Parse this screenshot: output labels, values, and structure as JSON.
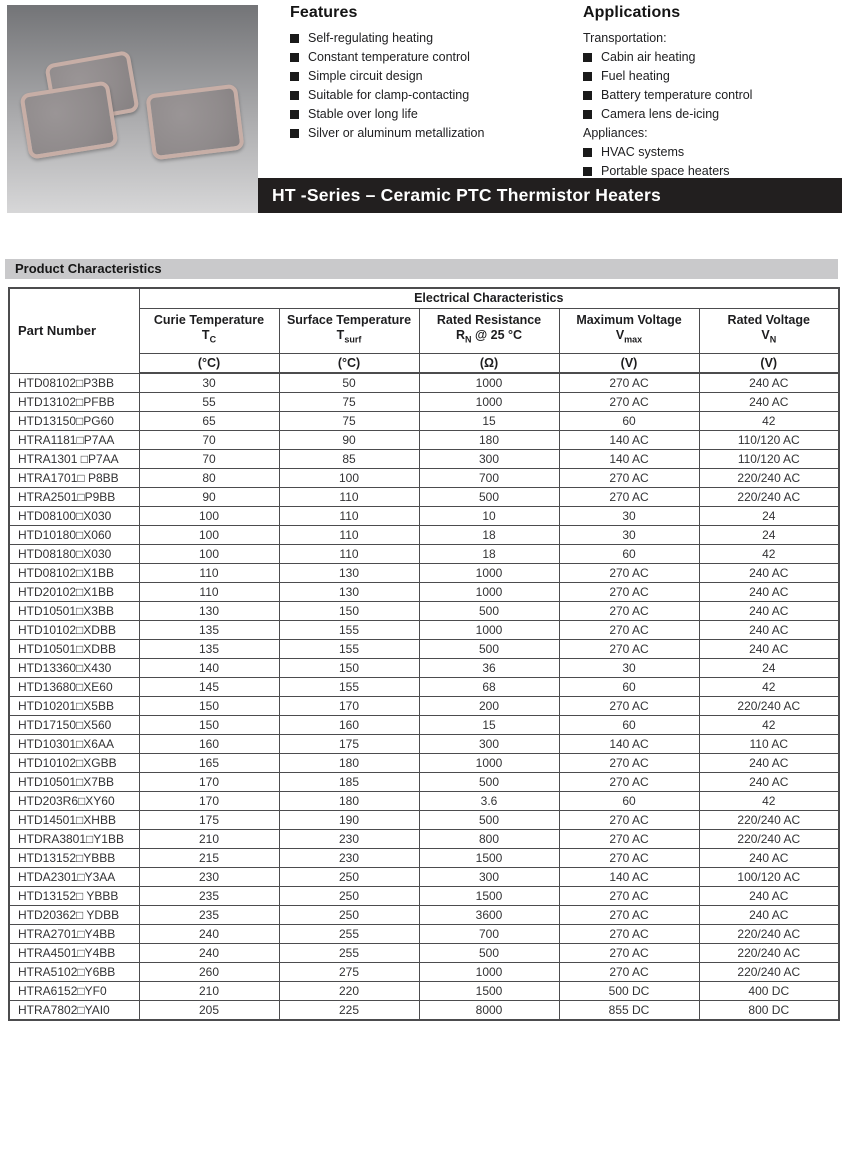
{
  "colors": {
    "banner_bg": "#221f1f",
    "banner_text": "#ffffff",
    "section_bar_bg": "#c9c9cb",
    "table_border": "#4c4c4e",
    "text_primary": "#2f2f31",
    "bullet": "#1a1a1a",
    "chip_border": "#c7aea6",
    "chip_face": "#908b8c",
    "photo_grad_top": "#737477",
    "photo_grad_bottom": "#d7d7d8"
  },
  "photo": {
    "description": "Three rounded rectangular ceramic PTC thermistor heater elements on gray gradient background"
  },
  "features": {
    "title": "Features",
    "items": [
      "Self-regulating heating",
      "Constant temperature control",
      "Simple circuit design",
      "Suitable for clamp-contacting",
      "Stable over long life",
      "Silver or aluminum metallization"
    ]
  },
  "applications": {
    "title": "Applications",
    "groups": [
      {
        "label": "Transportation:",
        "items": [
          "Cabin air heating",
          "Fuel heating",
          "Battery temperature control",
          "Camera lens de-icing"
        ]
      },
      {
        "label": "Appliances:",
        "items": [
          "HVAC systems",
          "Portable space heaters"
        ]
      }
    ]
  },
  "banner": {
    "title": "HT -Series – Ceramic PTC Thermistor Heaters"
  },
  "section": {
    "title": "Product Characteristics"
  },
  "table": {
    "part_number_header": "Part Number",
    "group_header": "Electrical Characteristics",
    "columns": [
      {
        "title": "Curie Temperature",
        "symbol": {
          "base": "T",
          "sub": "C",
          "suffix": ""
        },
        "unit": "(°C)"
      },
      {
        "title": "Surface Temperature",
        "symbol": {
          "base": "T",
          "sub": "surf",
          "suffix": ""
        },
        "unit": "(°C)"
      },
      {
        "title": "Rated Resistance",
        "symbol": {
          "base": "R",
          "sub": "N",
          "suffix": " @ 25 °C"
        },
        "unit": "(Ω)"
      },
      {
        "title": "Maximum Voltage",
        "symbol": {
          "base": "V",
          "sub": "max",
          "suffix": ""
        },
        "unit": "(V)"
      },
      {
        "title": "Rated Voltage",
        "symbol": {
          "base": "V",
          "sub": "N",
          "suffix": ""
        },
        "unit": "(V)"
      }
    ],
    "rows": [
      [
        "HTD08102□P3BB",
        "30",
        "50",
        "1000",
        "270 AC",
        "240 AC"
      ],
      [
        "HTD13102□PFBB",
        "55",
        "75",
        "1000",
        "270 AC",
        "240 AC"
      ],
      [
        "HTD13150□PG60",
        "65",
        "75",
        "15",
        "60",
        "42"
      ],
      [
        "HTRA1181□P7AA",
        "70",
        "90",
        "180",
        "140 AC",
        "110/120 AC"
      ],
      [
        "HTRA1301 □P7AA",
        "70",
        "85",
        "300",
        "140 AC",
        "110/120 AC"
      ],
      [
        "HTRA1701□ P8BB",
        "80",
        "100",
        "700",
        "270 AC",
        "220/240 AC"
      ],
      [
        "HTRA2501□P9BB",
        "90",
        "110",
        "500",
        "270 AC",
        "220/240 AC"
      ],
      [
        "HTD08100□X030",
        "100",
        "110",
        "10",
        "30",
        "24"
      ],
      [
        "HTD10180□X060",
        "100",
        "110",
        "18",
        "30",
        "24"
      ],
      [
        "HTD08180□X030",
        "100",
        "110",
        "18",
        "60",
        "42"
      ],
      [
        "HTD08102□X1BB",
        "110",
        "130",
        "1000",
        "270 AC",
        "240 AC"
      ],
      [
        "HTD20102□X1BB",
        "110",
        "130",
        "1000",
        "270 AC",
        "240 AC"
      ],
      [
        "HTD10501□X3BB",
        "130",
        "150",
        "500",
        "270 AC",
        "240 AC"
      ],
      [
        "HTD10102□XDBB",
        "135",
        "155",
        "1000",
        "270 AC",
        "240 AC"
      ],
      [
        "HTD10501□XDBB",
        "135",
        "155",
        "500",
        "270 AC",
        "240 AC"
      ],
      [
        "HTD13360□X430",
        "140",
        "150",
        "36",
        "30",
        "24"
      ],
      [
        "HTD13680□XE60",
        "145",
        "155",
        "68",
        "60",
        "42"
      ],
      [
        "HTD10201□X5BB",
        "150",
        "170",
        "200",
        "270 AC",
        "220/240 AC"
      ],
      [
        "HTD17150□X560",
        "150",
        "160",
        "15",
        "60",
        "42"
      ],
      [
        "HTD10301□X6AA",
        "160",
        "175",
        "300",
        "140 AC",
        "110 AC"
      ],
      [
        "HTD10102□XGBB",
        "165",
        "180",
        "1000",
        "270 AC",
        "240 AC"
      ],
      [
        "HTD10501□X7BB",
        "170",
        "185",
        "500",
        "270 AC",
        "240 AC"
      ],
      [
        "HTD203R6□XY60",
        "170",
        "180",
        "3.6",
        "60",
        "42"
      ],
      [
        "HTD14501□XHBB",
        "175",
        "190",
        "500",
        "270 AC",
        "220/240 AC"
      ],
      [
        "HTDRA3801□Y1BB",
        "210",
        "230",
        "800",
        "270 AC",
        "220/240 AC"
      ],
      [
        "HTD13152□YBBB",
        "215",
        "230",
        "1500",
        "270 AC",
        "240 AC"
      ],
      [
        "HTDA2301□Y3AA",
        "230",
        "250",
        "300",
        "140 AC",
        "100/120 AC"
      ],
      [
        "HTD13152□ YBBB",
        "235",
        "250",
        "1500",
        "270 AC",
        "240 AC"
      ],
      [
        "HTD20362□ YDBB",
        "235",
        "250",
        "3600",
        "270 AC",
        "240 AC"
      ],
      [
        "HTRA2701□Y4BB",
        "240",
        "255",
        "700",
        "270 AC",
        "220/240 AC"
      ],
      [
        "HTRA4501□Y4BB",
        "240",
        "255",
        "500",
        "270 AC",
        "220/240 AC"
      ],
      [
        "HTRA5102□Y6BB",
        "260",
        "275",
        "1000",
        "270 AC",
        "220/240 AC"
      ],
      [
        "HTRA6152□YF0",
        "210",
        "220",
        "1500",
        "500 DC",
        "400 DC"
      ],
      [
        "HTRA7802□YAI0",
        "205",
        "225",
        "8000",
        "855 DC",
        "800 DC"
      ]
    ]
  }
}
